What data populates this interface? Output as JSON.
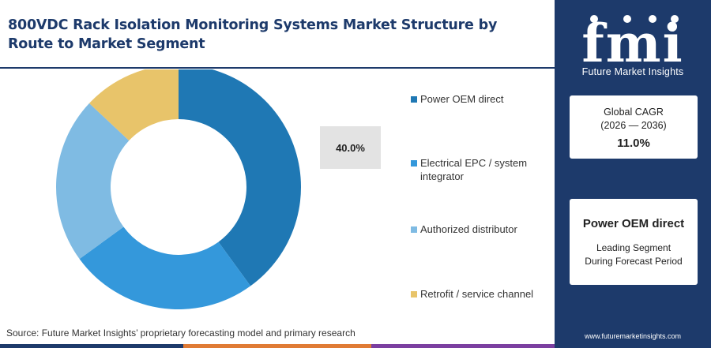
{
  "title": "800VDC Rack Isolation Monitoring Systems Market Structure by Route to Market Segment",
  "source": "Source: Future Market Insights’ proprietary forecasting model and primary research",
  "callout": "40.0%",
  "chart_data": {
    "type": "pie",
    "donut": true,
    "categories": [
      "Power OEM direct",
      "Electrical EPC / system integrator",
      "Authorized distributor",
      "Retrofit / service channel"
    ],
    "values": [
      40.0,
      25.0,
      22.0,
      13.0
    ],
    "colors": [
      "#1f78b4",
      "#3498db",
      "#7fbbe3",
      "#e8c46a"
    ],
    "labeled_value": "40.0%",
    "legend_position": "right"
  },
  "colors": {
    "navy": "#1d3a6b",
    "bottom_bar": [
      "#1d3a6b",
      "#e07b35",
      "#7b3fa0",
      "#1d3a6b"
    ]
  },
  "sidebar": {
    "logo_letters": "fmi",
    "logo_text": "Future Market Insights",
    "cagr_label": "Global CAGR",
    "cagr_years": "(2026 — 2036)",
    "cagr_value": "11.0%",
    "segment_name": "Power OEM direct",
    "segment_desc_line1": "Leading Segment",
    "segment_desc_line2": "During Forecast Period",
    "website": "www.futuremarketinsights.com"
  }
}
